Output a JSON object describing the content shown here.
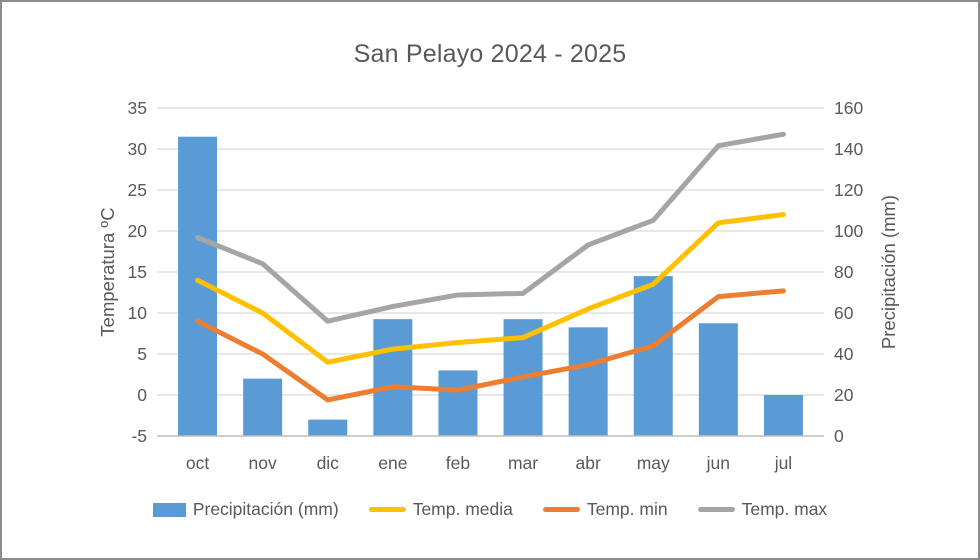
{
  "chart_data": {
    "type": "combo-bar-line",
    "title": "San Pelayo 2024 - 2025",
    "categories": [
      "oct",
      "nov",
      "dic",
      "ene",
      "feb",
      "mar",
      "abr",
      "may",
      "jun",
      "jul"
    ],
    "bar_series": {
      "name": "Precipitación (mm)",
      "axis": "right",
      "color": "#5B9BD5",
      "values": [
        146,
        28,
        8,
        57,
        32,
        57,
        53,
        78,
        55,
        20
      ]
    },
    "line_series": [
      {
        "name": "Temp. media",
        "color": "#FFC000",
        "values": [
          14,
          10,
          4,
          5.6,
          6.4,
          7,
          10.5,
          13.5,
          21,
          22
        ]
      },
      {
        "name": "Temp. min",
        "color": "#ED7D31",
        "values": [
          9,
          5,
          -0.6,
          1,
          0.6,
          2.2,
          3.7,
          6,
          12,
          12.7
        ]
      },
      {
        "name": "Temp. max",
        "color": "#A5A5A5",
        "values": [
          19.2,
          16,
          9,
          10.8,
          12.2,
          12.4,
          18.3,
          21.3,
          30.4,
          31.8
        ]
      }
    ],
    "left_axis": {
      "label": "Temperatura ºC",
      "min": -5,
      "max": 35,
      "ticks": [
        35,
        30,
        25,
        20,
        15,
        10,
        5,
        0,
        -5
      ]
    },
    "right_axis": {
      "label": "Precipitación (mm)",
      "min": 0,
      "max": 160,
      "ticks": [
        160,
        140,
        120,
        100,
        80,
        60,
        40,
        20,
        0
      ]
    },
    "grid": true,
    "legend_position": "bottom",
    "text_color": "#595959",
    "grid_color": "#D9D9D9",
    "axis_line_color": "#BFBFBF"
  }
}
